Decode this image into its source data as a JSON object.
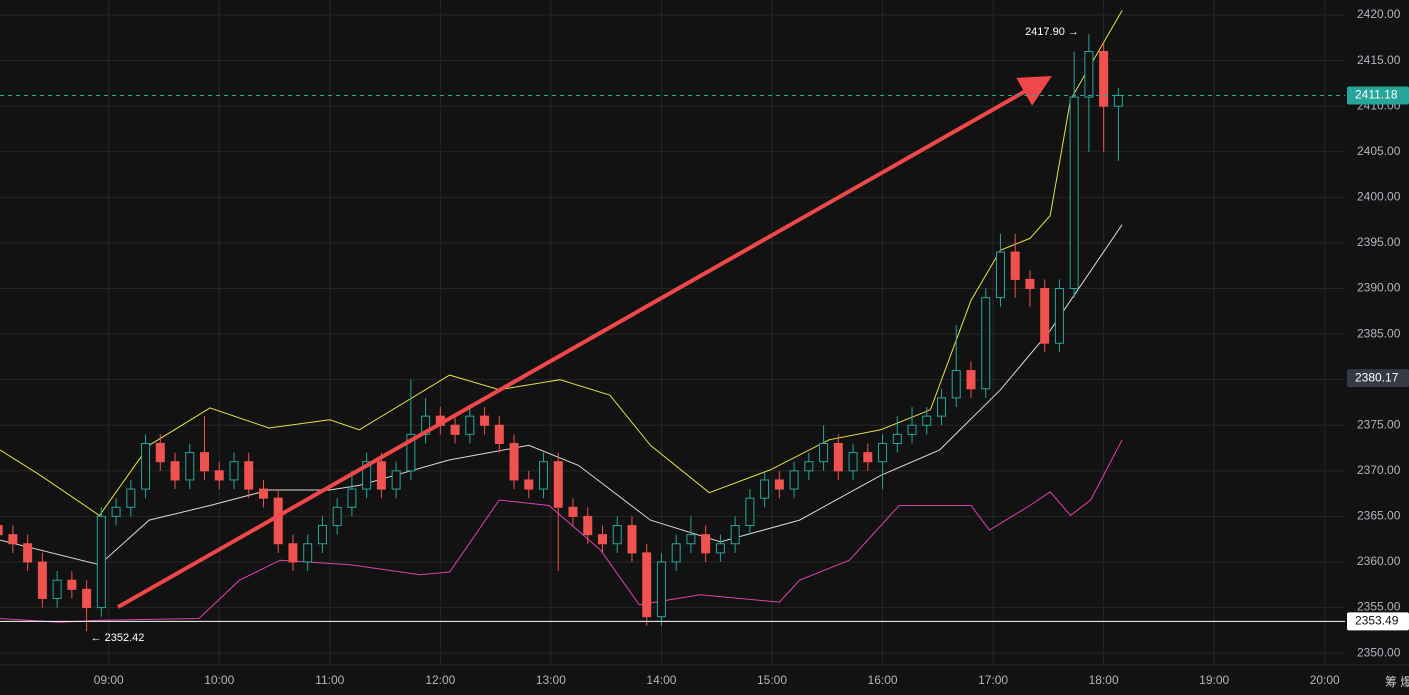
{
  "chart_data": {
    "type": "candlestick",
    "x": [
      480,
      488,
      496,
      504,
      512,
      520,
      528,
      536,
      544,
      552,
      560,
      568,
      576,
      584,
      592,
      600,
      608,
      616,
      624,
      632,
      640,
      648,
      656,
      664,
      672,
      680,
      688,
      696,
      704,
      712,
      720,
      728,
      736,
      744,
      752,
      760,
      768,
      776,
      784,
      792,
      800,
      808,
      816,
      824,
      832,
      840,
      848,
      856,
      864,
      872,
      880,
      888,
      896,
      904,
      912,
      920,
      928,
      936,
      944,
      952,
      960,
      968,
      976,
      984,
      992,
      1000,
      1008,
      1016,
      1024,
      1032,
      1040,
      1048,
      1056,
      1064,
      1072,
      1080,
      1088
    ],
    "open": [
      2364,
      2363,
      2362,
      2360,
      2356,
      2358,
      2357,
      2355,
      2365,
      2366,
      2368,
      2373,
      2371,
      2369,
      2372,
      2370,
      2369,
      2371,
      2368,
      2367,
      2362,
      2360,
      2362,
      2364,
      2366,
      2368,
      2371,
      2368,
      2370,
      2374,
      2376,
      2375,
      2374,
      2376,
      2375,
      2373,
      2369,
      2368,
      2371,
      2366,
      2365,
      2363,
      2362,
      2364,
      2361,
      2354,
      2360,
      2362,
      2363,
      2361,
      2362,
      2364,
      2367,
      2369,
      2368,
      2370,
      2371,
      2373,
      2370,
      2372,
      2371,
      2373,
      2374,
      2375,
      2376,
      2378,
      2381,
      2379,
      2389,
      2394,
      2391,
      2390,
      2384,
      2390,
      2411,
      2416,
      2410
    ],
    "high": [
      2365,
      2364,
      2363,
      2361,
      2359,
      2359,
      2358,
      2366,
      2367,
      2369,
      2374,
      2374,
      2372,
      2373,
      2376,
      2371,
      2372,
      2372,
      2369,
      2368,
      2363,
      2363,
      2365,
      2367,
      2370,
      2372,
      2372,
      2371,
      2380,
      2378,
      2377,
      2376,
      2377,
      2377,
      2376,
      2374,
      2370,
      2372,
      2372,
      2367,
      2366,
      2364,
      2365,
      2365,
      2362,
      2361,
      2363,
      2365,
      2364,
      2363,
      2365,
      2368,
      2370,
      2370,
      2371,
      2372,
      2375,
      2374,
      2373,
      2373,
      2374,
      2376,
      2377,
      2377,
      2379,
      2386,
      2382,
      2390,
      2396,
      2396,
      2392,
      2391,
      2391,
      2416,
      2417.9,
      2417,
      2412
    ],
    "low": [
      2362,
      2361,
      2359,
      2355,
      2355,
      2356,
      2352.42,
      2354,
      2364,
      2365,
      2367,
      2370,
      2368,
      2368,
      2369,
      2368,
      2368,
      2367,
      2366,
      2361,
      2359,
      2359,
      2361,
      2363,
      2365,
      2367,
      2367,
      2367,
      2369,
      2373,
      2374,
      2373,
      2373,
      2374,
      2372,
      2368,
      2367,
      2367,
      2359,
      2364,
      2362,
      2361,
      2361,
      2360,
      2353,
      2353,
      2359,
      2361,
      2360,
      2360,
      2361,
      2363,
      2366,
      2367,
      2367,
      2369,
      2370,
      2369,
      2369,
      2370,
      2368,
      2372,
      2373,
      2374,
      2375,
      2377,
      2378,
      2378,
      2388,
      2389,
      2388,
      2383,
      2383,
      2389,
      2405,
      2405,
      2404
    ],
    "close": [
      2363,
      2362,
      2360,
      2356,
      2358,
      2357,
      2355,
      2365,
      2366,
      2368,
      2373,
      2371,
      2369,
      2372,
      2370,
      2369,
      2371,
      2368,
      2367,
      2362,
      2360,
      2362,
      2364,
      2366,
      2368,
      2371,
      2368,
      2370,
      2374,
      2376,
      2375,
      2374,
      2376,
      2375,
      2373,
      2369,
      2368,
      2371,
      2366,
      2365,
      2363,
      2362,
      2364,
      2361,
      2354,
      2360,
      2362,
      2363,
      2361,
      2362,
      2364,
      2367,
      2369,
      2368,
      2370,
      2371,
      2373,
      2370,
      2372,
      2371,
      2373,
      2374,
      2375,
      2376,
      2378,
      2381,
      2379,
      2389,
      2394,
      2391,
      2390,
      2384,
      2390,
      2411,
      2416,
      2410,
      2411.18
    ],
    "up_color": "#26a69a",
    "down_color": "#ef5350",
    "series": [
      {
        "color": "#e6e04a",
        "x": [
          481,
          503,
          535,
          562,
          595,
          627,
          660,
          676,
          725,
          752,
          785,
          812,
          834,
          866,
          899,
          931,
          959,
          986,
          1008,
          1024,
          1040,
          1051,
          1062,
          1090
        ],
        "values": [
          2372.3,
          2369.5,
          2365.1,
          2372.8,
          2376.9,
          2374.7,
          2375.6,
          2374.5,
          2380.5,
          2378.9,
          2380,
          2378.3,
          2372.8,
          2367.6,
          2370.1,
          2373.4,
          2374.5,
          2376.7,
          2388.7,
          2394.2,
          2395.5,
          2398,
          2410.7,
          2420.5
        ]
      },
      {
        "color": "#d9d9d9",
        "x": [
          481,
          535,
          562,
          595,
          627,
          660,
          676,
          725,
          768,
          795,
          834,
          872,
          915,
          959,
          991,
          1024,
          1051,
          1090
        ],
        "values": [
          2362.4,
          2359.7,
          2364.6,
          2366.2,
          2367.9,
          2367.9,
          2368.4,
          2371.2,
          2372.8,
          2370.6,
          2364.6,
          2362.2,
          2364.6,
          2369.5,
          2372.3,
          2378.9,
          2385.4,
          2397
        ]
      },
      {
        "color": "#e040b0",
        "x": [
          481,
          513,
          535,
          589,
          611,
          633,
          671,
          709,
          725,
          752,
          779,
          807,
          828,
          861,
          904,
          915,
          942,
          969,
          991,
          1008,
          1018,
          1040,
          1051,
          1062,
          1073,
          1090
        ],
        "values": [
          2353.8,
          2353.4,
          2353.6,
          2353.8,
          2358,
          2360.2,
          2359.7,
          2358.6,
          2358.9,
          2366.8,
          2366.2,
          2361.3,
          2355.3,
          2356.4,
          2355.6,
          2358,
          2360.2,
          2366.2,
          2366.2,
          2366.2,
          2363.5,
          2366.2,
          2367.7,
          2365.1,
          2366.8,
          2373.4
        ]
      }
    ],
    "xlim": [
      481,
      1211
    ],
    "xticks": [
      {
        "value": 540,
        "label": "09:00"
      },
      {
        "value": 600,
        "label": "10:00"
      },
      {
        "value": 660,
        "label": "11:00"
      },
      {
        "value": 720,
        "label": "12:00"
      },
      {
        "value": 780,
        "label": "13:00"
      },
      {
        "value": 840,
        "label": "14:00"
      },
      {
        "value": 900,
        "label": "15:00"
      },
      {
        "value": 960,
        "label": "16:00"
      },
      {
        "value": 1020,
        "label": "17:00"
      },
      {
        "value": 1080,
        "label": "18:00"
      },
      {
        "value": 1140,
        "label": "19:00"
      },
      {
        "value": 1200,
        "label": "20:00"
      }
    ],
    "ylim": [
      2348.7,
      2421.65
    ],
    "yticks": [
      {
        "value": 2350,
        "label": "2350.00"
      },
      {
        "value": 2355,
        "label": "2355.00"
      },
      {
        "value": 2360,
        "label": "2360.00"
      },
      {
        "value": 2365,
        "label": "2365.00"
      },
      {
        "value": 2370,
        "label": "2370.00"
      },
      {
        "value": 2375,
        "label": "2375.00"
      },
      {
        "value": 2380,
        "label": "2380.00"
      },
      {
        "value": 2385,
        "label": "2385.00"
      },
      {
        "value": 2390,
        "label": "2390.00"
      },
      {
        "value": 2395,
        "label": "2395.00"
      },
      {
        "value": 2400,
        "label": "2400.00"
      },
      {
        "value": 2405,
        "label": "2405.00"
      },
      {
        "value": 2410,
        "label": "2410.00"
      },
      {
        "value": 2415,
        "label": "2415.00"
      },
      {
        "value": 2420,
        "label": "2420.00"
      }
    ],
    "grid": true,
    "price_lines": [
      {
        "value": 2411.18,
        "color": "#26a69a",
        "line": "dashed"
      },
      {
        "value": 2380.17,
        "color": "#363a45",
        "line": "none"
      },
      {
        "value": 2353.49,
        "color": "#ffffff",
        "line": "solid"
      }
    ],
    "annotations": [
      {
        "text": "2417.90 →",
        "value": 2417.9,
        "x": 1072,
        "side": "left"
      },
      {
        "text": "← 2352.42",
        "value": 2352.42,
        "x": 528,
        "side": "right"
      }
    ],
    "corner_text": "筹 爆"
  }
}
